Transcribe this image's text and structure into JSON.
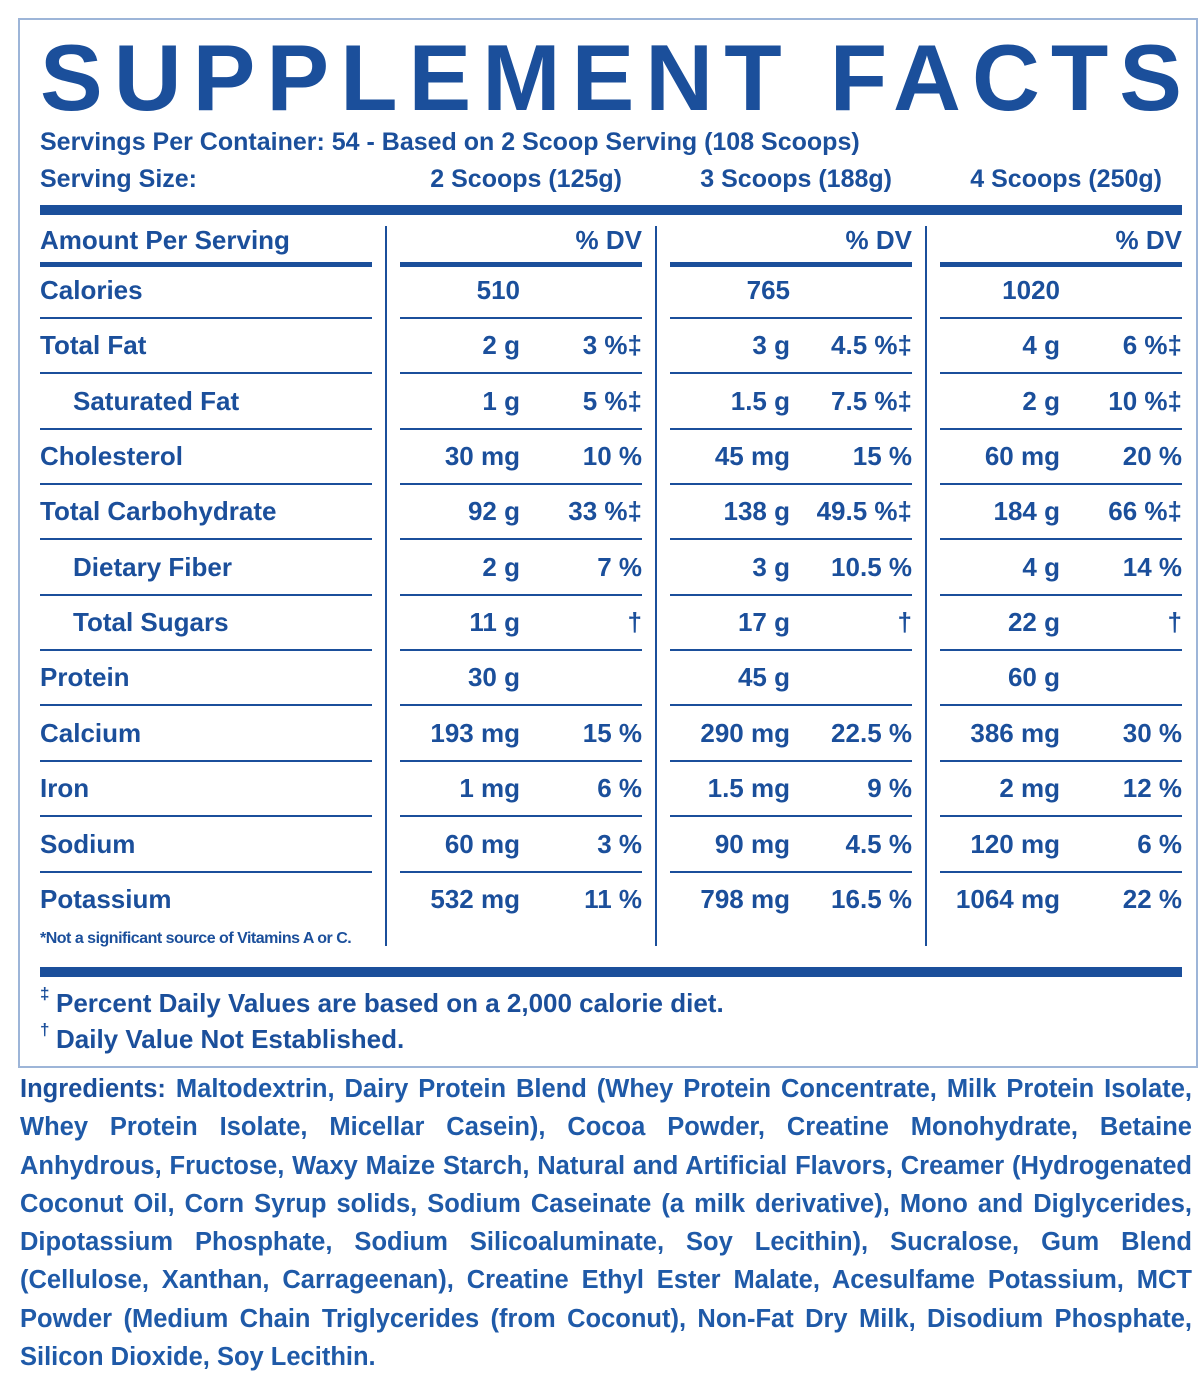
{
  "title": "SUPPLEMENT FACTS",
  "servings_per_container": "Servings Per Container: 54 - Based on 2 Scoop Serving (108 Scoops)",
  "serving_size_label": "Serving Size:",
  "columns": [
    "2 Scoops (125g)",
    "3 Scoops (188g)",
    "4 Scoops (250g)"
  ],
  "amount_header": "Amount Per Serving",
  "dv_headers": [
    "% DV",
    "% DV",
    "% DV"
  ],
  "rows": [
    {
      "name": "Calories",
      "values": [
        {
          "amount": "510"
        },
        {
          "amount": "765"
        },
        {
          "amount": "1020"
        }
      ]
    },
    {
      "name": "Total Fat",
      "values": [
        {
          "amount": "2 g",
          "dv": "3 %‡"
        },
        {
          "amount": "3 g",
          "dv": "4.5 %‡"
        },
        {
          "amount": "4 g",
          "dv": "6 %‡"
        }
      ]
    },
    {
      "name": "Saturated Fat",
      "values": [
        {
          "amount": "1 g",
          "dv": "5 %‡"
        },
        {
          "amount": "1.5 g",
          "dv": "7.5 %‡"
        },
        {
          "amount": "2 g",
          "dv": "10 %‡"
        }
      ]
    },
    {
      "name": "Cholesterol",
      "values": [
        {
          "amount": "30 mg",
          "dv": "10 %"
        },
        {
          "amount": "45 mg",
          "dv": "15 %"
        },
        {
          "amount": "60 mg",
          "dv": "20 %"
        }
      ]
    },
    {
      "name": "Total Carbohydrate",
      "values": [
        {
          "amount": "92 g",
          "dv": "33 %‡"
        },
        {
          "amount": "138 g",
          "dv": "49.5 %‡"
        },
        {
          "amount": "184 g",
          "dv": "66 %‡"
        }
      ]
    },
    {
      "name": "Dietary Fiber",
      "values": [
        {
          "amount": "2 g",
          "dv": "7 %"
        },
        {
          "amount": "3 g",
          "dv": "10.5 %"
        },
        {
          "amount": "4 g",
          "dv": "14 %"
        }
      ]
    },
    {
      "name": "Total Sugars",
      "values": [
        {
          "amount": "11 g",
          "dv": "†"
        },
        {
          "amount": "17 g",
          "dv": "†"
        },
        {
          "amount": "22 g",
          "dv": "†"
        }
      ]
    },
    {
      "name": "Protein",
      "values": [
        {
          "amount": "30 g"
        },
        {
          "amount": "45 g"
        },
        {
          "amount": "60 g"
        }
      ]
    },
    {
      "name": "Calcium",
      "values": [
        {
          "amount": "193 mg",
          "dv": "15 %"
        },
        {
          "amount": "290 mg",
          "dv": "22.5 %"
        },
        {
          "amount": "386 mg",
          "dv": "30 %"
        }
      ]
    },
    {
      "name": "Iron",
      "values": [
        {
          "amount": "1 mg",
          "dv": "6 %"
        },
        {
          "amount": "1.5 mg",
          "dv": "9 %"
        },
        {
          "amount": "2 mg",
          "dv": "12 %"
        }
      ]
    },
    {
      "name": "Sodium",
      "values": [
        {
          "amount": "60 mg",
          "dv": "3 %"
        },
        {
          "amount": "90 mg",
          "dv": "4.5 %"
        },
        {
          "amount": "120 mg",
          "dv": "6 %"
        }
      ]
    },
    {
      "name": "Potassium",
      "values": [
        {
          "amount": "532 mg",
          "dv": "11 %"
        },
        {
          "amount": "798 mg",
          "dv": "16.5 %"
        },
        {
          "amount": "1064 mg",
          "dv": "22 %"
        }
      ]
    }
  ],
  "footnote": "*Not a significant source of Vitamins A or C.",
  "notes": [
    {
      "symbol": "‡",
      "text": "Percent Daily Values are based on a 2,000 calorie diet."
    },
    {
      "symbol": "†",
      "text": "Daily Value Not Established."
    }
  ],
  "ingredients_label": "Ingredients:",
  "ingredients": "Maltodextrin, Dairy Protein Blend (Whey Protein Concentrate, Milk Protein Isolate, Whey Protein Isolate, Micellar Casein), Cocoa Powder, Creatine Monohydrate, Betaine Anhydrous, Fructose, Waxy Maize Starch, Natural and Artificial Flavors, Creamer (Hydrogenated Coconut Oil, Corn Syrup solids, Sodium Caseinate (a milk derivative), Mono and Diglycerides, Dipotassium Phosphate, Sodium Silicoaluminate, Soy Lecithin), Sucralose, Gum Blend (Cellulose, Xanthan, Carrageenan), Creatine Ethyl Ester Malate, Acesulfame Potassium, MCT Powder (Medium Chain Triglycerides (from Coconut), Non-Fat Dry Milk, Disodium Phosphate, Silicon Dioxide, Soy Lecithin."
}
